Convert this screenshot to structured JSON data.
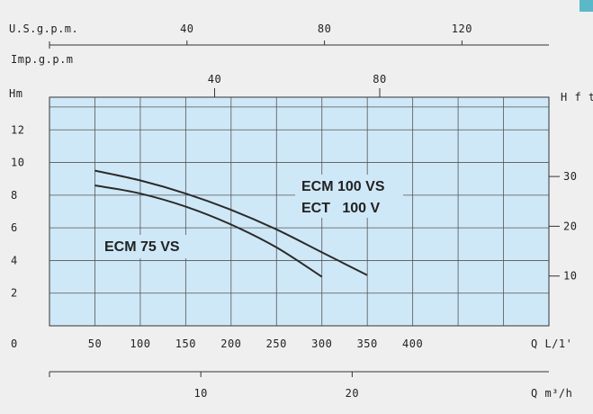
{
  "chart_data": {
    "type": "line",
    "title": "",
    "units": {
      "usgpm": "U.S.g.p.m.",
      "impgpm": "Imp.g.p.m",
      "head_left": "Hm",
      "head_right": "H f t",
      "flow_lpm": "Q L/1'",
      "flow_m3h": "Q m³/h"
    },
    "axes": {
      "x_lpm": {
        "min": 0,
        "max": 550,
        "ticks": [
          "50",
          "100",
          "150",
          "200",
          "250",
          "300",
          "350",
          "400"
        ],
        "tick_values": [
          50,
          100,
          150,
          200,
          250,
          300,
          350,
          400
        ]
      },
      "y_m": {
        "min": 0,
        "max": 14,
        "ticks": [
          "2",
          "4",
          "6",
          "8",
          "10",
          "12"
        ],
        "tick_values": [
          2,
          4,
          6,
          8,
          10,
          12
        ],
        "zero_label": "0"
      },
      "y_ft": {
        "ticks": [
          "10",
          "20",
          "30"
        ],
        "tick_values": [
          10,
          20,
          30
        ]
      },
      "x_usgpm": {
        "ticks": [
          "40",
          "80",
          "120"
        ],
        "tick_values": [
          40,
          80,
          120
        ]
      },
      "x_impgpm": {
        "ticks": [
          "40",
          "80"
        ],
        "tick_values": [
          40,
          80
        ]
      },
      "x_m3h": {
        "ticks": [
          "10",
          "20"
        ],
        "tick_values": [
          10,
          20
        ]
      }
    },
    "grid": true,
    "colors": {
      "plot_bg": "#cfe8f7",
      "grid": "#555555",
      "curve": "#2b2b2b",
      "page_bg": "#efefef"
    },
    "series": [
      {
        "name": "ECM 100 VS\nECT 100 V",
        "x": [
          50,
          100,
          150,
          200,
          250,
          300,
          350
        ],
        "y": [
          9.5,
          8.9,
          8.1,
          7.1,
          5.9,
          4.5,
          3.1
        ]
      },
      {
        "name": "ECM 75 VS",
        "x": [
          50,
          100,
          150,
          200,
          250,
          300
        ],
        "y": [
          8.6,
          8.1,
          7.3,
          6.2,
          4.8,
          3.0
        ]
      }
    ],
    "curve_labels": [
      "ECM 100 VS",
      "ECT   100 V",
      "ECM 75 VS"
    ]
  }
}
